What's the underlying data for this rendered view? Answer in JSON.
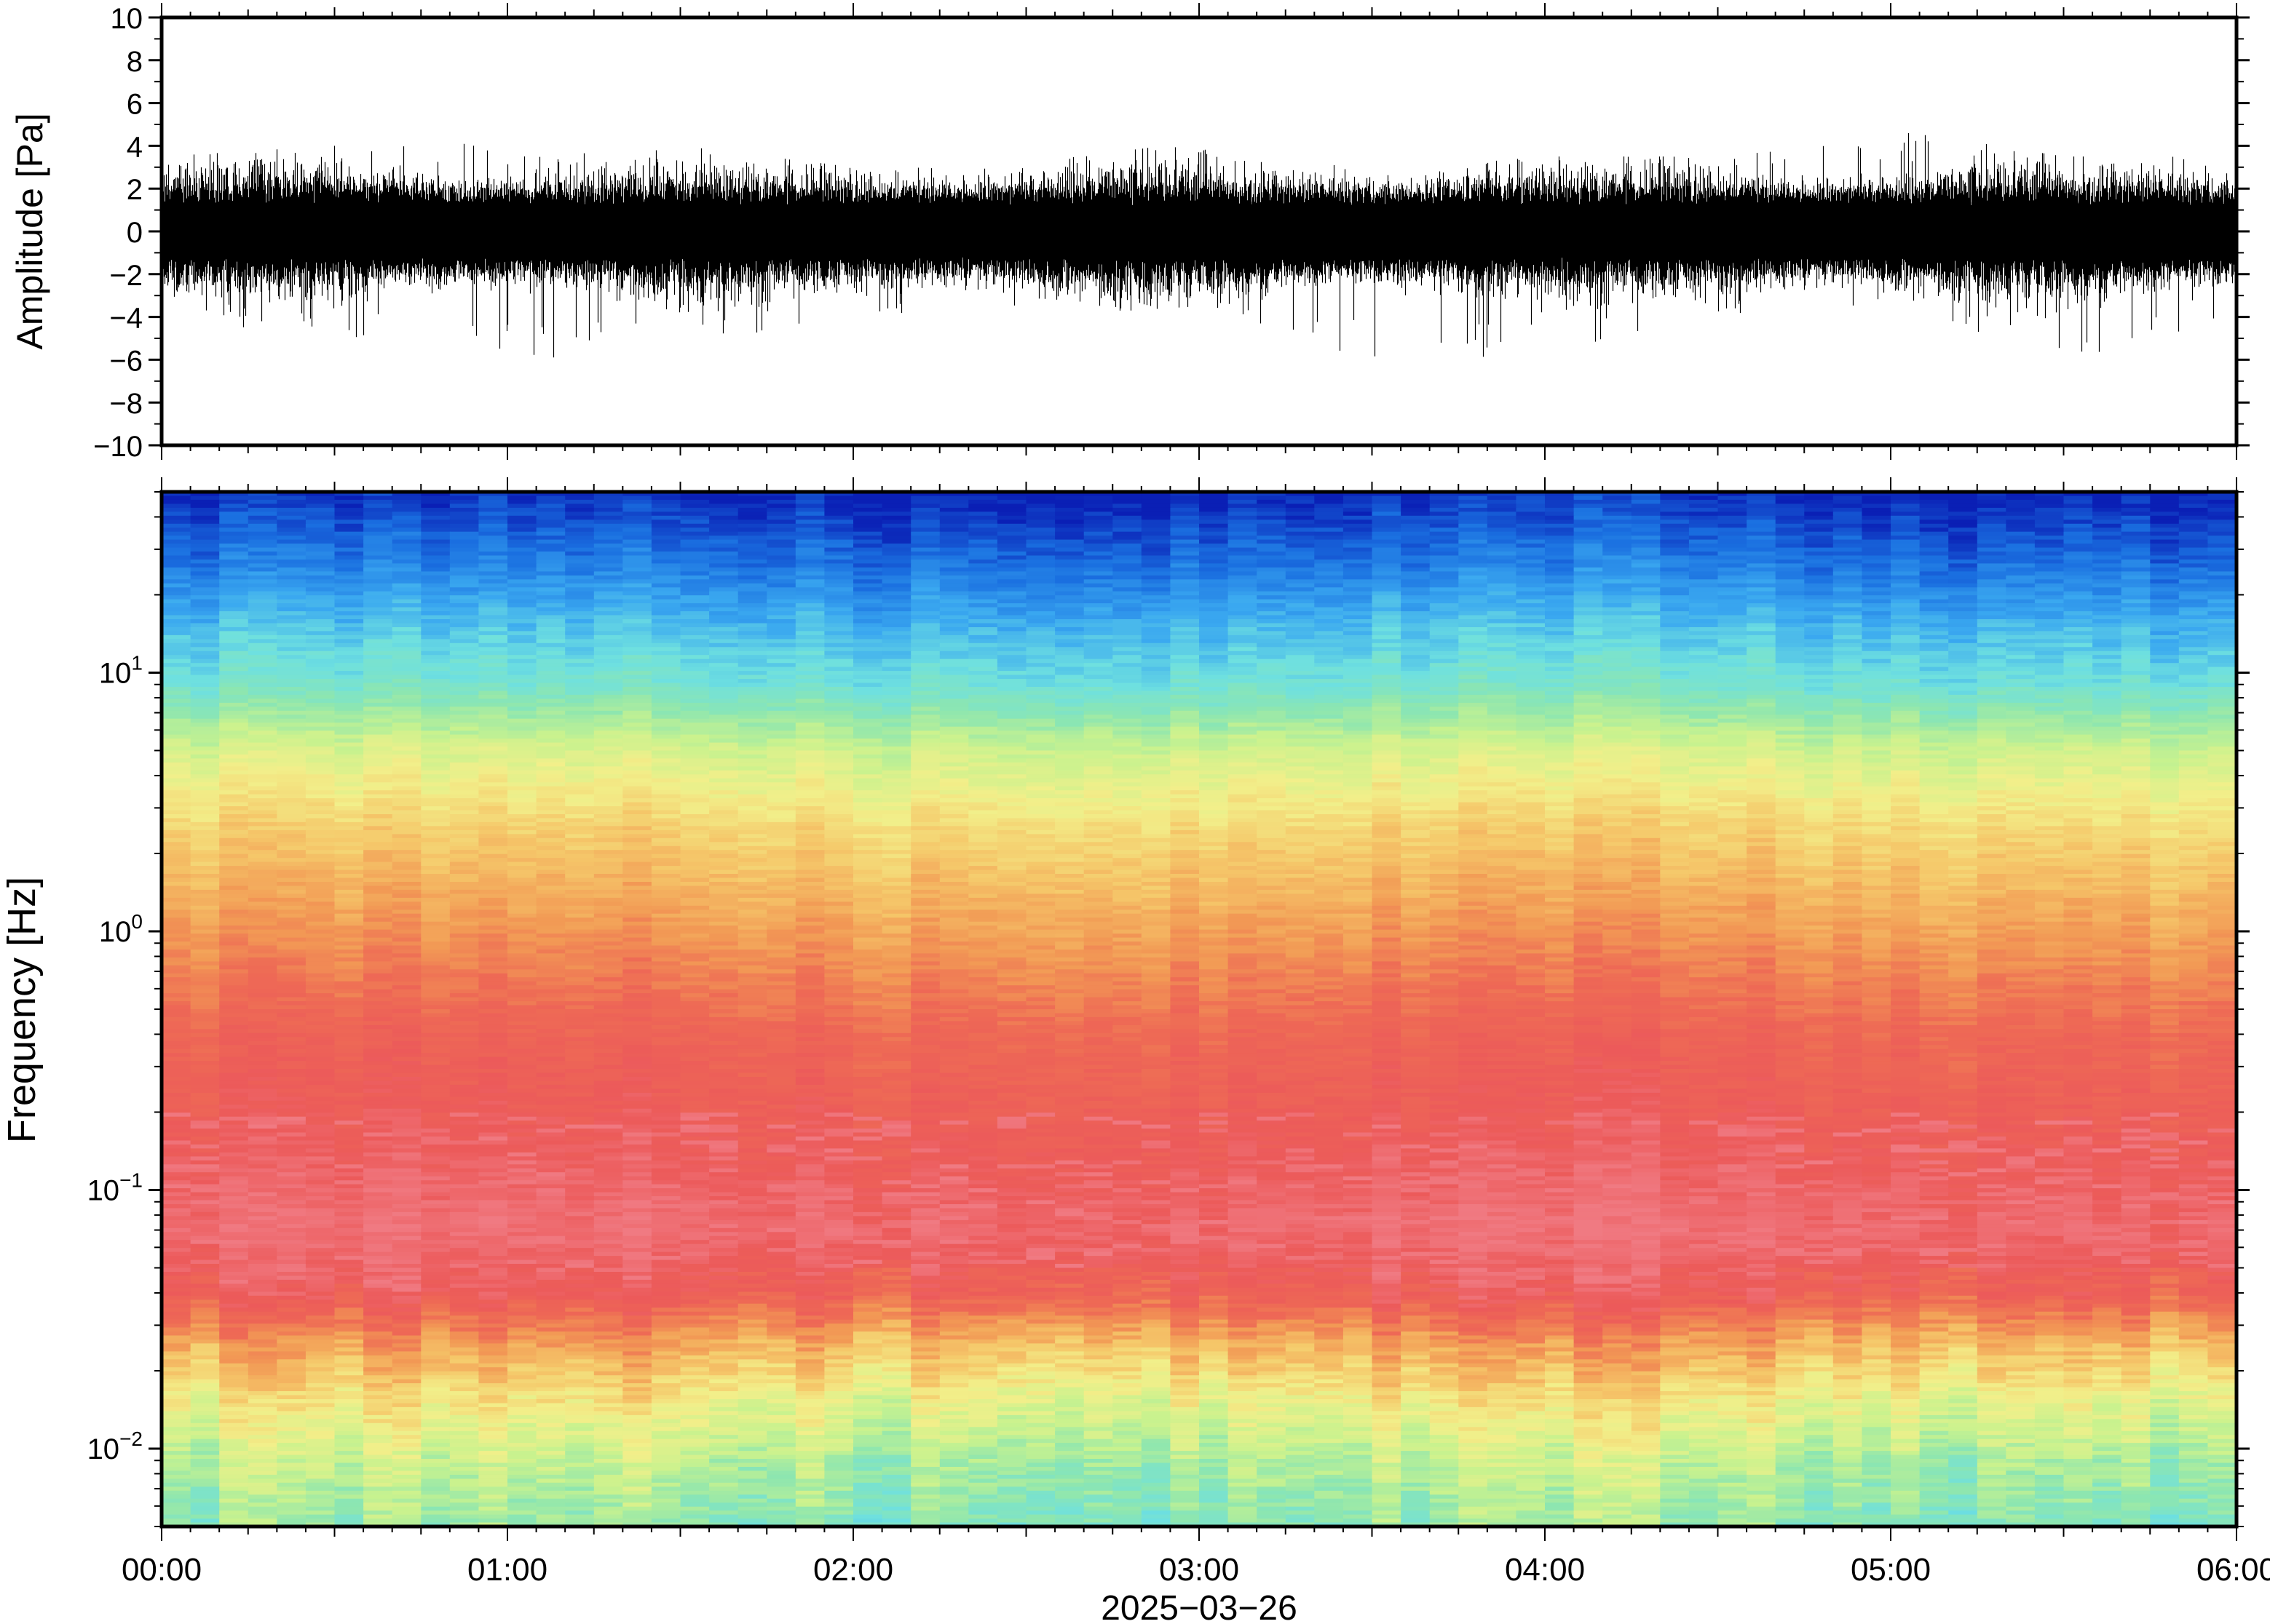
{
  "chart_data": [
    {
      "type": "line",
      "ylabel": "Amplitude [Pa]",
      "ylim": [
        -10,
        10
      ],
      "yticks": [
        10,
        8,
        6,
        4,
        2,
        0,
        -2,
        -4,
        -6,
        -8,
        -10
      ],
      "ytick_labels": [
        "10",
        "8",
        "6",
        "4",
        "2",
        "0",
        "−2",
        "−4",
        "−6",
        "−8",
        "−10"
      ],
      "xlim": [
        "00:00",
        "06:00"
      ],
      "series": [
        {
          "x": [
            "00:00",
            "00:30",
            "01:00",
            "01:30",
            "02:00",
            "02:30",
            "03:00",
            "03:30",
            "04:00",
            "04:30",
            "05:00",
            "05:30",
            "06:00"
          ],
          "envelope_max": [
            3.5,
            4.0,
            4.2,
            4.0,
            3.0,
            3.2,
            4.2,
            2.8,
            3.5,
            3.5,
            4.8,
            3.5,
            3.5
          ],
          "envelope_min": [
            -4.5,
            -5.0,
            -6.2,
            -5.5,
            -4.0,
            -4.0,
            -3.5,
            -6.2,
            -5.8,
            -4.0,
            -4.0,
            -6.3,
            -4.0
          ],
          "typical_range": [
            -2,
            2
          ]
        }
      ],
      "color": "#000000",
      "grid": false
    },
    {
      "type": "heatmap",
      "ylabel": "Frequency [Hz]",
      "yscale": "log",
      "ylim": [
        0.005,
        50
      ],
      "yticks": [
        10,
        1,
        0.1,
        0.01
      ],
      "ytick_labels": [
        {
          "base": "10",
          "exp": "1"
        },
        {
          "base": "10",
          "exp": "0"
        },
        {
          "base": "10",
          "exp": "−1"
        },
        {
          "base": "10",
          "exp": "−2"
        }
      ],
      "x": [
        "00:00",
        "01:00",
        "02:00",
        "03:00",
        "04:00",
        "05:00",
        "06:00"
      ],
      "xtick_labels": [
        "00:00",
        "01:00",
        "02:00",
        "03:00",
        "04:00",
        "05:00",
        "06:00"
      ],
      "xlabel": "2025−03−26",
      "colormap": [
        "#0a1fb5",
        "#1a6fe0",
        "#3aa8f0",
        "#6ee0e0",
        "#8de6b0",
        "#c9f28e",
        "#f2ef8a",
        "#f5c86a",
        "#f29a55",
        "#ee6a55",
        "#ec5a5a",
        "#f07a82"
      ],
      "frequency_profile": [
        {
          "hz": 50,
          "level": "dark blue"
        },
        {
          "hz": 20,
          "level": "blue"
        },
        {
          "hz": 10,
          "level": "cyan-green"
        },
        {
          "hz": 4,
          "level": "yellow"
        },
        {
          "hz": 1.5,
          "level": "orange"
        },
        {
          "hz": 0.5,
          "level": "red"
        },
        {
          "hz": 0.08,
          "level": "pink-red"
        },
        {
          "hz": 0.03,
          "level": "orange"
        },
        {
          "hz": 0.015,
          "level": "yellow"
        },
        {
          "hz": 0.007,
          "level": "green-cyan"
        }
      ],
      "grid": false
    }
  ]
}
